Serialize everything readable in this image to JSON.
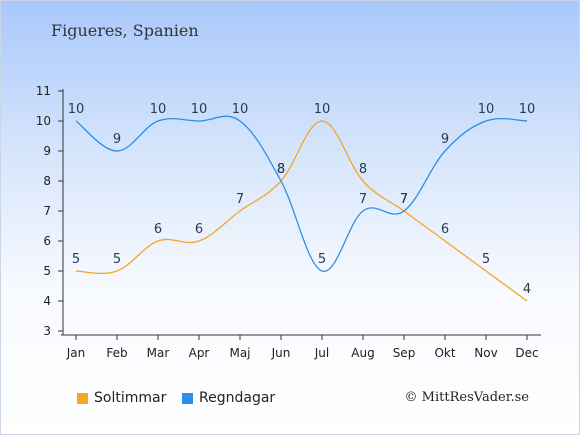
{
  "page": {
    "title": "Figueres, Spanien",
    "copyright": "© MittResVader.se"
  },
  "colors": {
    "sun": "#f5a623",
    "rain": "#2b8ee8",
    "axis": "#333333",
    "label": "#2a3a55"
  },
  "legend": {
    "sun": "Soltimmar",
    "rain": "Regndagar"
  },
  "chart_data": {
    "type": "line",
    "categories": [
      "Jan",
      "Feb",
      "Mar",
      "Apr",
      "Maj",
      "Jun",
      "Jul",
      "Aug",
      "Sep",
      "Okt",
      "Nov",
      "Dec"
    ],
    "series": [
      {
        "name": "Soltimmar",
        "color": "#f5a623",
        "values": [
          5,
          5,
          6,
          6,
          7,
          8,
          10,
          8,
          7,
          6,
          5,
          4
        ]
      },
      {
        "name": "Regndagar",
        "color": "#2b8ee8",
        "values": [
          10,
          9,
          10,
          10,
          10,
          8,
          5,
          7,
          7,
          9,
          10,
          10
        ]
      }
    ],
    "ylim": [
      3,
      11
    ],
    "yticks": [
      3,
      4,
      5,
      6,
      7,
      8,
      9,
      10,
      11
    ],
    "grid": false,
    "legend_position": "bottom-left"
  }
}
